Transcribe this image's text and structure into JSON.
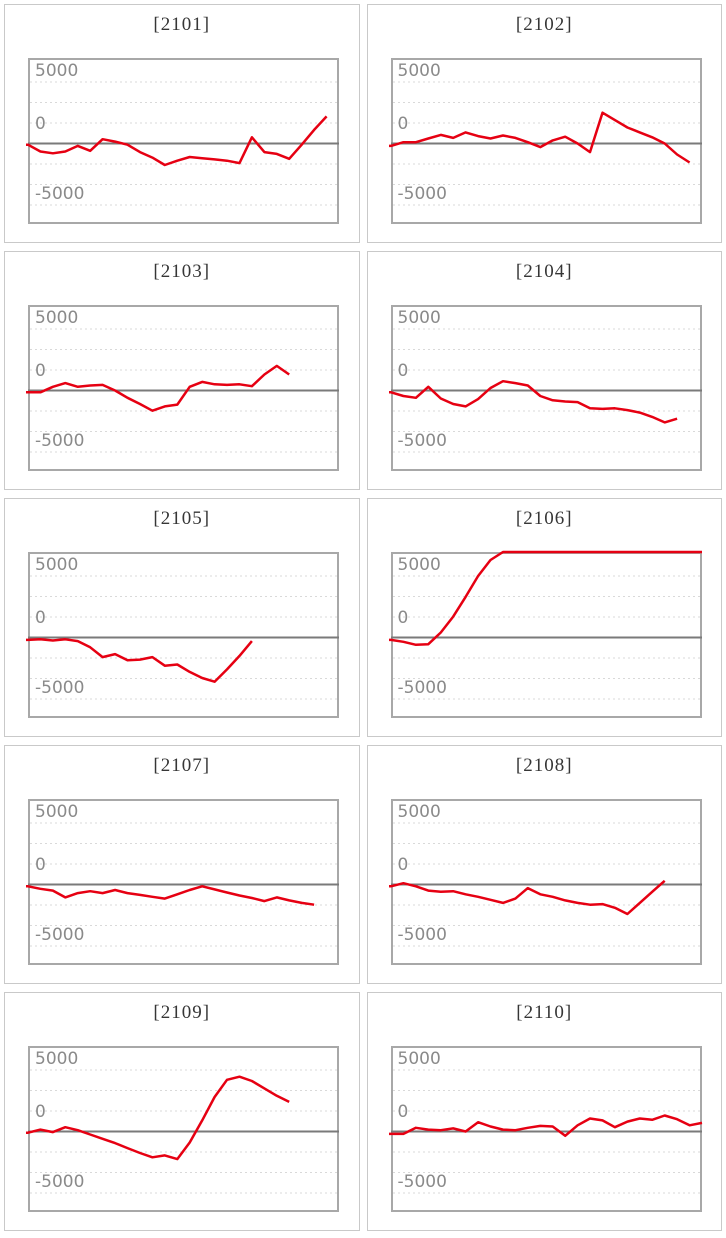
{
  "page": {
    "background": "#ffffff",
    "description_title": "machine daily profit line charts grid"
  },
  "style": {
    "series_color": "#e60012",
    "zero_line_color": "#7a7a7a",
    "grid_color": "#d9d9d9",
    "plot_border_color": "#a8a8a8",
    "panel_border_color": "#c9c9c9",
    "title_color": "#363636",
    "axis_label_color": "#8a8a8a"
  },
  "axis": {
    "y_labels": [
      {
        "text": "5000",
        "value": 5000,
        "gap": 2
      },
      {
        "text": "0",
        "value": 0,
        "gap": 10
      },
      {
        "text": "-5000",
        "value": -5000,
        "gap": 2
      }
    ],
    "y_top": 6950,
    "y_bottom": -6550,
    "grid_interval": 1666.67,
    "grid_values": [
      5000,
      3333.33,
      1666.67,
      -1666.67,
      -3333.33,
      -5000
    ],
    "grid_style": "dotted",
    "zero_line": "solid"
  },
  "chart_data": [
    {
      "type": "line",
      "title": "[2101]",
      "machine_id": "2101",
      "ylim": [
        -6550,
        6950
      ],
      "x_step_fraction": 0.04,
      "values": [
        -100,
        -650,
        -800,
        -650,
        -200,
        -600,
        350,
        150,
        -100,
        -700,
        -1150,
        -1750,
        -1400,
        -1100,
        -1200,
        -1300,
        -1400,
        -1600,
        500,
        -700,
        -850,
        -1250,
        -100,
        1100,
        2200
      ]
    },
    {
      "type": "line",
      "title": "[2102]",
      "machine_id": "2102",
      "ylim": [
        -6550,
        6950
      ],
      "x_step_fraction": 0.04,
      "values": [
        -200,
        100,
        100,
        400,
        700,
        450,
        900,
        600,
        400,
        650,
        450,
        100,
        -300,
        250,
        550,
        0,
        -700,
        2500,
        1900,
        1300,
        900,
        500,
        0,
        -900,
        -1550
      ]
    },
    {
      "type": "line",
      "title": "[2103]",
      "machine_id": "2103",
      "ylim": [
        -6550,
        6950
      ],
      "x_step_fraction": 0.04,
      "values": [
        -150,
        -150,
        300,
        600,
        300,
        400,
        450,
        0,
        -600,
        -1100,
        -1650,
        -1300,
        -1150,
        300,
        700,
        500,
        450,
        500,
        350,
        1300,
        2000,
        1300
      ]
    },
    {
      "type": "line",
      "title": "[2104]",
      "machine_id": "2104",
      "ylim": [
        -6550,
        6950
      ],
      "x_step_fraction": 0.04,
      "values": [
        -150,
        -450,
        -600,
        300,
        -650,
        -1100,
        -1300,
        -700,
        200,
        750,
        600,
        400,
        -450,
        -800,
        -900,
        -950,
        -1450,
        -1500,
        -1450,
        -1600,
        -1800,
        -2150,
        -2600,
        -2300
      ]
    },
    {
      "type": "line",
      "title": "[2105]",
      "machine_id": "2105",
      "ylim": [
        -6550,
        6950
      ],
      "x_step_fraction": 0.04,
      "values": [
        -200,
        -150,
        -250,
        -150,
        -300,
        -800,
        -1600,
        -1350,
        -1850,
        -1800,
        -1600,
        -2300,
        -2200,
        -2800,
        -3300,
        -3600,
        -2600,
        -1500,
        -300
      ]
    },
    {
      "type": "line",
      "title": "[2106]",
      "machine_id": "2106",
      "ylim": [
        -6550,
        6950
      ],
      "x_step_fraction": 0.04,
      "values": [
        -200,
        -350,
        -600,
        -550,
        400,
        1700,
        3300,
        5000,
        6300,
        6950,
        6950,
        6950,
        6950,
        6950,
        6950,
        6950,
        6950,
        6950,
        6950,
        6950,
        6950,
        6950,
        6950,
        6950,
        6950,
        6950
      ]
    },
    {
      "type": "line",
      "title": "[2107]",
      "machine_id": "2107",
      "ylim": [
        -6550,
        6950
      ],
      "x_step_fraction": 0.04,
      "values": [
        -150,
        -350,
        -500,
        -1050,
        -700,
        -550,
        -700,
        -450,
        -700,
        -850,
        -1000,
        -1150,
        -800,
        -450,
        -150,
        -400,
        -650,
        -900,
        -1100,
        -1350,
        -1050,
        -1300,
        -1500,
        -1650
      ]
    },
    {
      "type": "line",
      "title": "[2108]",
      "machine_id": "2108",
      "ylim": [
        -6550,
        6950
      ],
      "x_step_fraction": 0.04,
      "values": [
        -150,
        100,
        -150,
        -500,
        -600,
        -550,
        -800,
        -1000,
        -1250,
        -1500,
        -1150,
        -300,
        -800,
        -1000,
        -1300,
        -1500,
        -1650,
        -1600,
        -1900,
        -2400,
        -1500,
        -600,
        300
      ]
    },
    {
      "type": "line",
      "title": "[2109]",
      "machine_id": "2109",
      "ylim": [
        -6550,
        6950
      ],
      "x_step_fraction": 0.04,
      "values": [
        -100,
        150,
        -50,
        350,
        100,
        -250,
        -600,
        -950,
        -1350,
        -1750,
        -2100,
        -1950,
        -2250,
        -900,
        900,
        2800,
        4200,
        4450,
        4100,
        3500,
        2900,
        2400
      ]
    },
    {
      "type": "line",
      "title": "[2110]",
      "machine_id": "2110",
      "ylim": [
        -6550,
        6950
      ],
      "x_step_fraction": 0.04,
      "values": [
        -200,
        -200,
        300,
        150,
        100,
        250,
        0,
        750,
        400,
        150,
        100,
        300,
        450,
        400,
        -350,
        500,
        1050,
        900,
        350,
        800,
        1050,
        950,
        1300,
        1000,
        500,
        700
      ]
    }
  ]
}
